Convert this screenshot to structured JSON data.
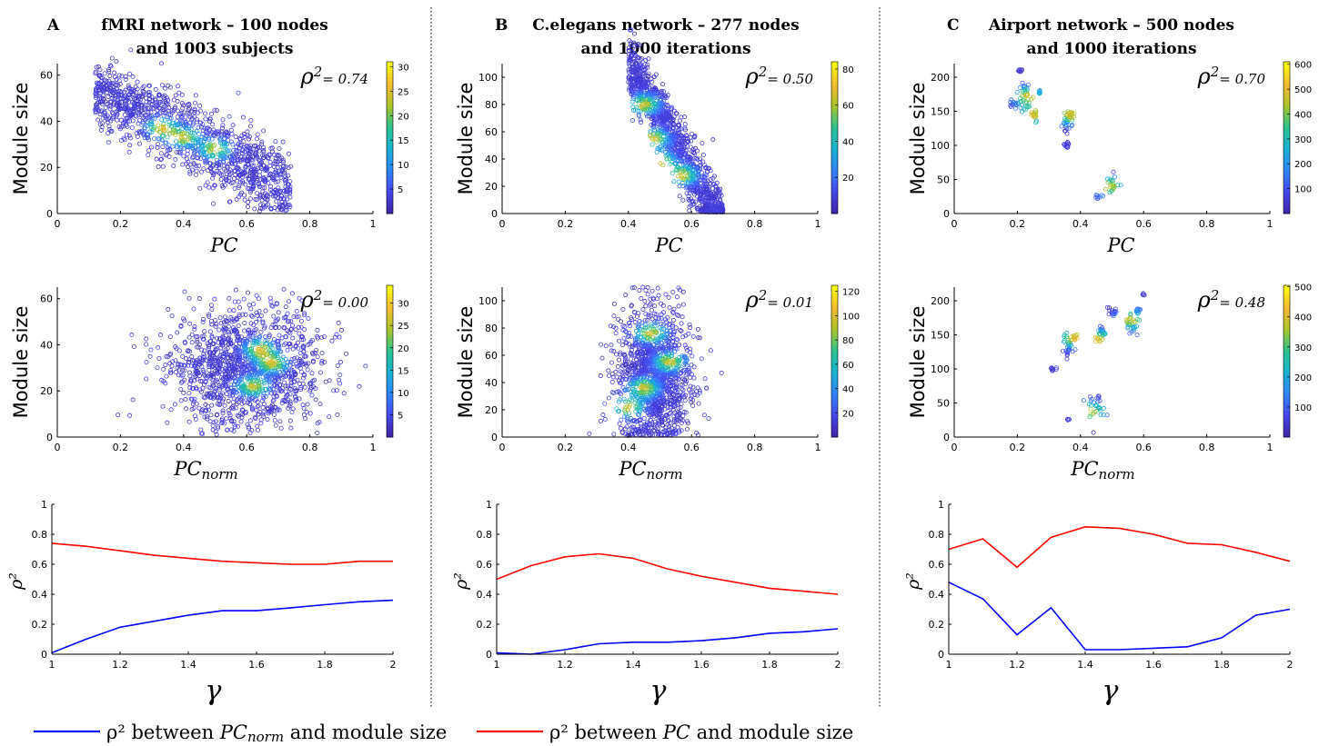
{
  "columns": [
    {
      "letter": "A",
      "title_line1": "fMRI network – 100 nodes",
      "title_line2": "and 1003 subjects"
    },
    {
      "letter": "B",
      "title_line1": "C.elegans network – 277 nodes",
      "title_line2": "and 1000 iterations"
    },
    {
      "letter": "C",
      "title_line1": "Airport network – 500 nodes",
      "title_line2": "and 1000 iterations"
    }
  ],
  "legend": {
    "blue": {
      "pre": "ρ² between ",
      "var": "PC",
      "sub": "norm",
      "post": " and module size",
      "color": "#0000ff"
    },
    "red": {
      "pre": "ρ² between ",
      "var": "PC",
      "sub": "",
      "post": " and module size",
      "color": "#ff0000"
    }
  },
  "labels": {
    "module_size": "Module size",
    "pc": "PC",
    "pc_norm_base": "PC",
    "pc_norm_sub": "norm",
    "rho2": "ρ²",
    "gamma": "γ",
    "rho_prefix": "ρ",
    "rho_sup": "2",
    "rho_eq": "= "
  },
  "colormap": [
    "#3e26a8",
    "#4748f2",
    "#2e87f7",
    "#19b2d3",
    "#2ac38f",
    "#a8c52a",
    "#f5b931",
    "#f9fb0e"
  ],
  "chart_data": [
    {
      "id": "A-pc",
      "type": "scatter",
      "xlabel": "PC",
      "ylabel": "Module size",
      "xlim": [
        0,
        1
      ],
      "ylim": [
        0,
        65
      ],
      "xticks": [
        0,
        0.2,
        0.4,
        0.6,
        0.8,
        1
      ],
      "yticks": [
        0,
        20,
        40,
        60
      ],
      "rho2": "0.74",
      "colorbar": {
        "ticks": [
          5,
          10,
          15,
          20,
          25,
          30
        ],
        "max": 31
      },
      "trend": {
        "x_range": [
          0.12,
          0.74
        ],
        "intercept": 62,
        "slope": -70,
        "spread_y": 8
      },
      "hotspots": [
        [
          0.33,
          37
        ],
        [
          0.4,
          33
        ],
        [
          0.5,
          28
        ]
      ]
    },
    {
      "id": "A-pcnorm",
      "type": "scatter",
      "xlabel": "PC_norm",
      "ylabel": "Module size",
      "xlim": [
        0,
        1
      ],
      "ylim": [
        0,
        65
      ],
      "xticks": [
        0,
        0.2,
        0.4,
        0.6,
        0.8,
        1
      ],
      "yticks": [
        0,
        20,
        40,
        60
      ],
      "rho2": "0.00",
      "colorbar": {
        "ticks": [
          5,
          10,
          15,
          20,
          25,
          30
        ],
        "max": 34
      },
      "cloud": {
        "x_center": 0.6,
        "x_spread": 0.12,
        "y_center": 30,
        "y_spread": 12
      },
      "hotspots": [
        [
          0.64,
          38
        ],
        [
          0.62,
          22
        ],
        [
          0.68,
          32
        ]
      ]
    },
    {
      "id": "A-rho",
      "type": "line",
      "xlabel": "γ",
      "ylabel": "ρ²",
      "xlim": [
        1,
        2
      ],
      "ylim": [
        0,
        1
      ],
      "xticks": [
        1,
        1.2,
        1.4,
        1.6,
        1.8,
        2
      ],
      "yticks": [
        0,
        0.2,
        0.4,
        0.6,
        0.8,
        1
      ],
      "x": [
        1,
        1.1,
        1.2,
        1.3,
        1.4,
        1.5,
        1.6,
        1.7,
        1.8,
        1.9,
        2
      ],
      "series": [
        {
          "key": "pcnorm",
          "color": "#0000ff",
          "values": [
            0.01,
            0.1,
            0.18,
            0.22,
            0.26,
            0.29,
            0.29,
            0.31,
            0.33,
            0.35,
            0.36
          ]
        },
        {
          "key": "pc",
          "color": "#ff0000",
          "values": [
            0.74,
            0.72,
            0.69,
            0.66,
            0.64,
            0.62,
            0.61,
            0.6,
            0.6,
            0.62,
            0.62
          ]
        }
      ]
    },
    {
      "id": "B-pc",
      "type": "scatter",
      "xlabel": "PC",
      "ylabel": "Module size",
      "xlim": [
        0,
        1
      ],
      "ylim": [
        0,
        110
      ],
      "xticks": [
        0,
        0.2,
        0.4,
        0.6,
        0.8,
        1
      ],
      "yticks": [
        0,
        20,
        40,
        60,
        80,
        100
      ],
      "rho2": "0.50",
      "colorbar": {
        "ticks": [
          20,
          40,
          60,
          80
        ],
        "max": 84
      },
      "trend": {
        "x_range": [
          0.4,
          0.7
        ],
        "intercept": 270,
        "slope": -400,
        "spread_y": 12
      },
      "hotspots": [
        [
          0.45,
          80
        ],
        [
          0.48,
          55
        ],
        [
          0.5,
          38
        ],
        [
          0.57,
          28
        ]
      ]
    },
    {
      "id": "B-pcnorm",
      "type": "scatter",
      "xlabel": "PC_norm",
      "ylabel": "Module size",
      "xlim": [
        0,
        1
      ],
      "ylim": [
        0,
        110
      ],
      "xticks": [
        0,
        0.2,
        0.4,
        0.6,
        0.8,
        1
      ],
      "yticks": [
        0,
        20,
        40,
        60,
        80,
        100
      ],
      "rho2": "0.01",
      "colorbar": {
        "ticks": [
          20,
          40,
          60,
          80,
          100,
          120
        ],
        "max": 125
      },
      "cloud": {
        "x_center": 0.48,
        "x_spread": 0.06,
        "y_center": 45,
        "y_spread": 25
      },
      "hotspots": [
        [
          0.47,
          76
        ],
        [
          0.45,
          36
        ],
        [
          0.4,
          22
        ],
        [
          0.53,
          55
        ]
      ]
    },
    {
      "id": "B-rho",
      "type": "line",
      "xlabel": "γ",
      "ylabel": "ρ²",
      "xlim": [
        1,
        2
      ],
      "ylim": [
        0,
        1
      ],
      "xticks": [
        1,
        1.2,
        1.4,
        1.6,
        1.8,
        2
      ],
      "yticks": [
        0,
        0.2,
        0.4,
        0.6,
        0.8,
        1
      ],
      "x": [
        1,
        1.1,
        1.2,
        1.3,
        1.4,
        1.5,
        1.6,
        1.7,
        1.8,
        1.9,
        2
      ],
      "series": [
        {
          "key": "pcnorm",
          "color": "#0000ff",
          "values": [
            0.01,
            0.0,
            0.03,
            0.07,
            0.08,
            0.08,
            0.09,
            0.11,
            0.14,
            0.15,
            0.17
          ]
        },
        {
          "key": "pc",
          "color": "#ff0000",
          "values": [
            0.5,
            0.59,
            0.65,
            0.67,
            0.64,
            0.57,
            0.52,
            0.48,
            0.44,
            0.42,
            0.4
          ]
        }
      ]
    },
    {
      "id": "C-pc",
      "type": "scatter",
      "xlabel": "PC",
      "ylabel": "Module size",
      "xlim": [
        0,
        1
      ],
      "ylim": [
        0,
        220
      ],
      "xticks": [
        0,
        0.2,
        0.4,
        0.6,
        0.8,
        1
      ],
      "yticks": [
        0,
        50,
        100,
        150,
        200
      ],
      "rho2": "0.70",
      "colorbar": {
        "ticks": [
          100,
          200,
          300,
          400,
          500,
          600
        ],
        "max": 610
      },
      "clusters": [
        [
          0.19,
          160,
          0.008,
          4
        ],
        [
          0.225,
          170,
          0.01,
          10
        ],
        [
          0.255,
          145,
          0.006,
          5
        ],
        [
          0.36,
          135,
          0.008,
          8
        ],
        [
          0.37,
          145,
          0.004,
          3
        ],
        [
          0.5,
          45,
          0.01,
          6
        ],
        [
          0.46,
          25,
          0.006,
          2
        ],
        [
          0.21,
          210,
          0.003,
          2
        ],
        [
          0.27,
          178,
          0.003,
          2
        ],
        [
          0.355,
          100,
          0.004,
          3
        ]
      ],
      "hotspots": [
        [
          0.255,
          145
        ],
        [
          0.37,
          145
        ],
        [
          0.49,
          40
        ],
        [
          0.235,
          172
        ]
      ]
    },
    {
      "id": "C-pcnorm",
      "type": "scatter",
      "xlabel": "PC_norm",
      "ylabel": "Module size",
      "xlim": [
        0,
        1
      ],
      "ylim": [
        0,
        220
      ],
      "xticks": [
        0,
        0.2,
        0.4,
        0.6,
        0.8,
        1
      ],
      "yticks": [
        0,
        50,
        100,
        150,
        200
      ],
      "rho2": "0.48",
      "colorbar": {
        "ticks": [
          100,
          200,
          300,
          400,
          500
        ],
        "max": 505
      },
      "clusters": [
        [
          0.31,
          100,
          0.006,
          2
        ],
        [
          0.36,
          135,
          0.008,
          8
        ],
        [
          0.38,
          145,
          0.006,
          3
        ],
        [
          0.47,
          155,
          0.006,
          6
        ],
        [
          0.5,
          185,
          0.008,
          4
        ],
        [
          0.56,
          165,
          0.01,
          8
        ],
        [
          0.58,
          185,
          0.004,
          3
        ],
        [
          0.45,
          45,
          0.015,
          8
        ],
        [
          0.36,
          25,
          0.003,
          1
        ],
        [
          0.6,
          210,
          0.002,
          1
        ],
        [
          0.455,
          143,
          0.004,
          2
        ]
      ],
      "hotspots": [
        [
          0.38,
          145
        ],
        [
          0.455,
          143
        ],
        [
          0.56,
          172
        ],
        [
          0.43,
          37
        ]
      ]
    },
    {
      "id": "C-rho",
      "type": "line",
      "xlabel": "γ",
      "ylabel": "ρ²",
      "xlim": [
        1,
        2
      ],
      "ylim": [
        0,
        1
      ],
      "xticks": [
        1,
        1.2,
        1.4,
        1.6,
        1.8,
        2
      ],
      "yticks": [
        0,
        0.2,
        0.4,
        0.6,
        0.8,
        1
      ],
      "x": [
        1,
        1.1,
        1.2,
        1.3,
        1.4,
        1.5,
        1.6,
        1.7,
        1.8,
        1.9,
        2
      ],
      "series": [
        {
          "key": "pcnorm",
          "color": "#0000ff",
          "values": [
            0.48,
            0.37,
            0.13,
            0.31,
            0.03,
            0.03,
            0.04,
            0.05,
            0.11,
            0.26,
            0.3
          ]
        },
        {
          "key": "pc",
          "color": "#ff0000",
          "values": [
            0.7,
            0.77,
            0.58,
            0.78,
            0.85,
            0.84,
            0.8,
            0.74,
            0.73,
            0.68,
            0.62
          ]
        }
      ]
    }
  ]
}
